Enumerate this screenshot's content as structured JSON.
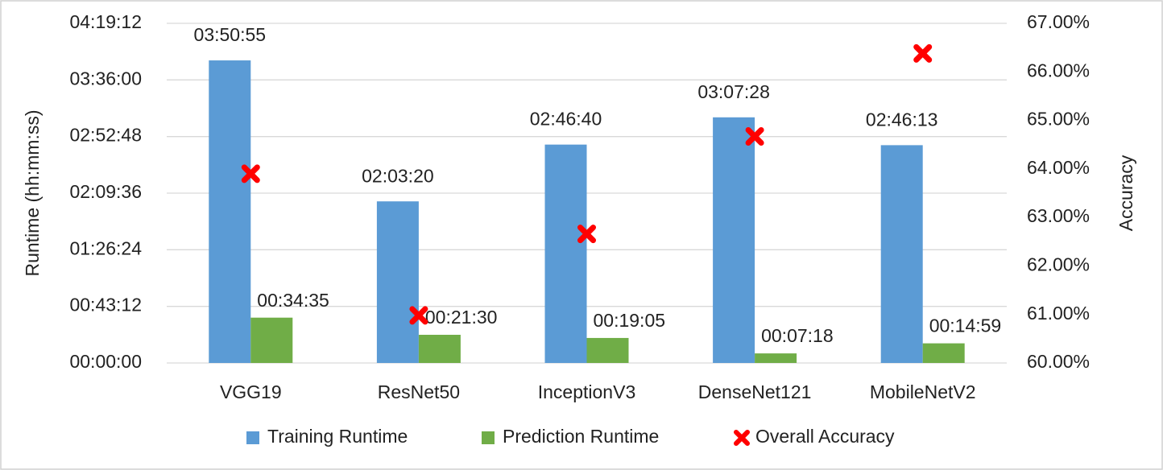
{
  "chart_data": {
    "type": "bar",
    "y_label": "Runtime (hh:mm:ss)",
    "y2_label": "Accuracy",
    "categories": [
      "VGG19",
      "ResNet50",
      "InceptionV3",
      "DenseNet121",
      "MobileNetV2"
    ],
    "series": [
      {
        "name": "Training Runtime",
        "type": "bar",
        "color": "#5b9bd5",
        "values": [
          13855,
          7400,
          10000,
          11248,
          9973
        ],
        "value_labels": [
          "03:50:55",
          "02:03:20",
          "02:46:40",
          "03:07:28",
          "02:46:13"
        ]
      },
      {
        "name": "Prediction Runtime",
        "type": "bar",
        "color": "#70ad47",
        "values": [
          2075,
          1290,
          1145,
          438,
          899
        ],
        "value_labels": [
          "00:34:35",
          "00:21:30",
          "00:19:05",
          "00:07:18",
          "00:14:59"
        ]
      },
      {
        "name": "Overall Accuracy",
        "type": "scatter",
        "axis": "y2",
        "color": "#ff0000",
        "values": [
          63.9,
          60.98,
          62.66,
          64.67,
          66.38
        ]
      }
    ],
    "ylim": [
      0,
      15552
    ],
    "yticks": [
      {
        "value": 0,
        "label": "00:00:00"
      },
      {
        "value": 2592,
        "label": "00:43:12"
      },
      {
        "value": 5184,
        "label": "01:26:24"
      },
      {
        "value": 7776,
        "label": "02:09:36"
      },
      {
        "value": 10368,
        "label": "02:52:48"
      },
      {
        "value": 12960,
        "label": "03:36:00"
      },
      {
        "value": 15552,
        "label": "04:19:12"
      }
    ],
    "y2lim": [
      60,
      67
    ],
    "y2ticks": [
      {
        "value": 60,
        "label": "60.00%"
      },
      {
        "value": 61,
        "label": "61.00%"
      },
      {
        "value": 62,
        "label": "62.00%"
      },
      {
        "value": 63,
        "label": "63.00%"
      },
      {
        "value": 64,
        "label": "64.00%"
      },
      {
        "value": 65,
        "label": "65.00%"
      },
      {
        "value": 66,
        "label": "66.00%"
      },
      {
        "value": 67,
        "label": "67.00%"
      }
    ],
    "grid": true,
    "legend": "bottom"
  }
}
